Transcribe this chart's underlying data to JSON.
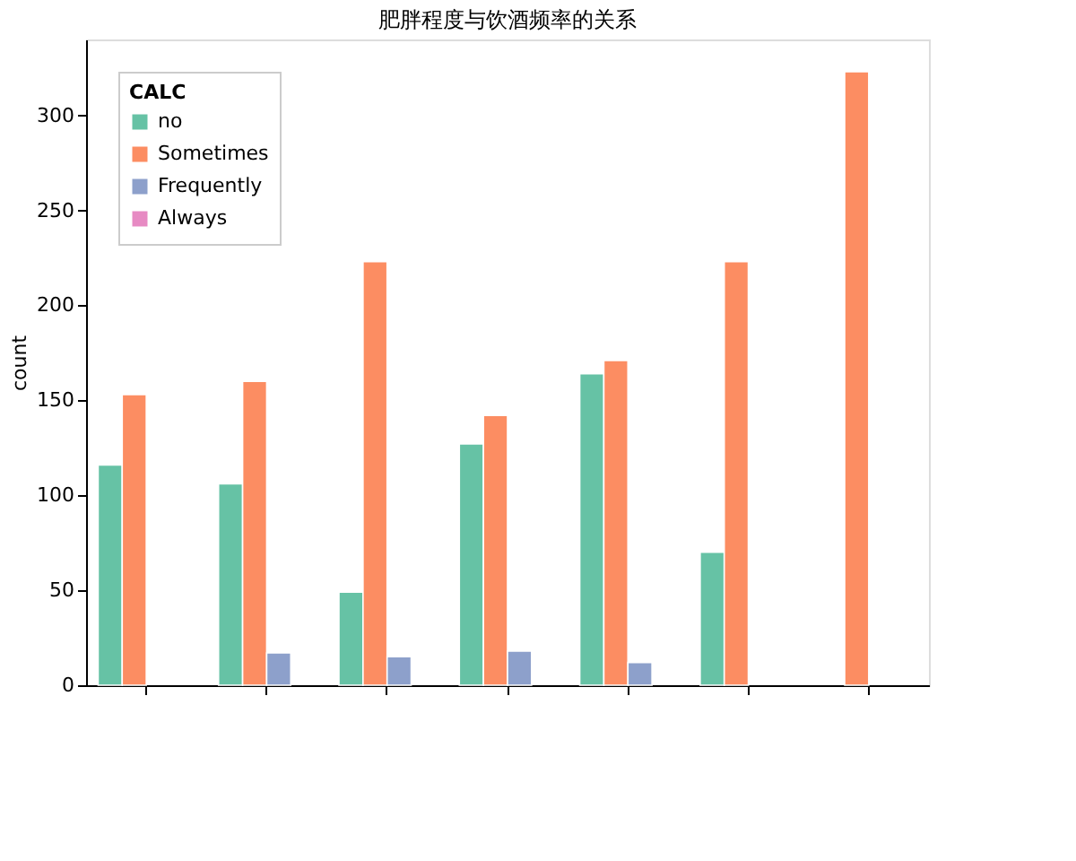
{
  "chart_data": {
    "type": "bar",
    "title": "肥胖程度与饮酒频率的关系",
    "ylabel": "count",
    "legend_title": "CALC",
    "categories": [
      null,
      null,
      null,
      null,
      null,
      null,
      null
    ],
    "series": [
      {
        "name": "no",
        "color": "#66c2a5",
        "values": [
          116,
          106,
          49,
          127,
          164,
          70,
          null
        ]
      },
      {
        "name": "Sometimes",
        "color": "#fc8d62",
        "values": [
          153,
          160,
          223,
          142,
          171,
          223,
          323
        ]
      },
      {
        "name": "Frequently",
        "color": "#8da0cb",
        "values": [
          null,
          17,
          15,
          18,
          12,
          null,
          null
        ]
      },
      {
        "name": "Always",
        "color": "#e78ac3",
        "values": [
          null,
          null,
          null,
          null,
          null,
          null,
          null
        ]
      }
    ],
    "ylim": [
      0,
      340
    ],
    "yticks": [
      0,
      50,
      100,
      150,
      200,
      250,
      300
    ],
    "grid": false,
    "legend": "top left",
    "tick_labels": "y"
  }
}
